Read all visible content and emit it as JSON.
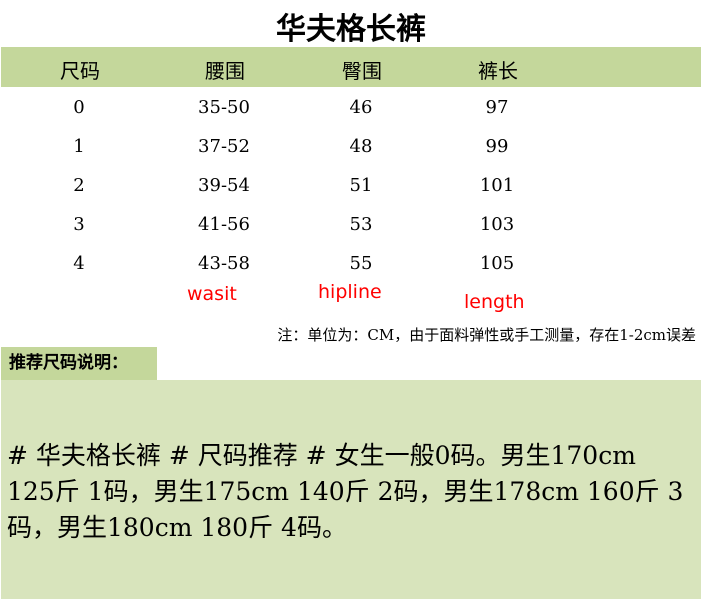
{
  "title": "华夫格长裤",
  "headers": [
    "尺码",
    "腰围",
    "臀围",
    "裤长"
  ],
  "rows": [
    [
      "0",
      "35-50",
      "46",
      "97"
    ],
    [
      "1",
      "37-52",
      "48",
      "99"
    ],
    [
      "2",
      "39-54",
      "51",
      "101"
    ],
    [
      "3",
      "41-56",
      "53",
      "103"
    ],
    [
      "4",
      "43-58",
      "55",
      "105"
    ]
  ],
  "annotations": {
    "waist": "wasit",
    "hip": "hipline",
    "length": "length"
  },
  "note": "注：单位为：CM，由于面料弹性或手工测量，存在1-2cm误差",
  "recommend": {
    "label": "推荐尺码说明：",
    "text": "# 华夫格长裤 # 尺码推荐 # 女生一般0码。男生170cm 125斤 1码，男生175cm 140斤 2码，男生178cm 160斤 3码，男生180cm 180斤 4码。"
  },
  "colors": {
    "header_bg": "#c4d79b",
    "box_bg": "#d8e4bc",
    "annotation": "#ff0000"
  }
}
